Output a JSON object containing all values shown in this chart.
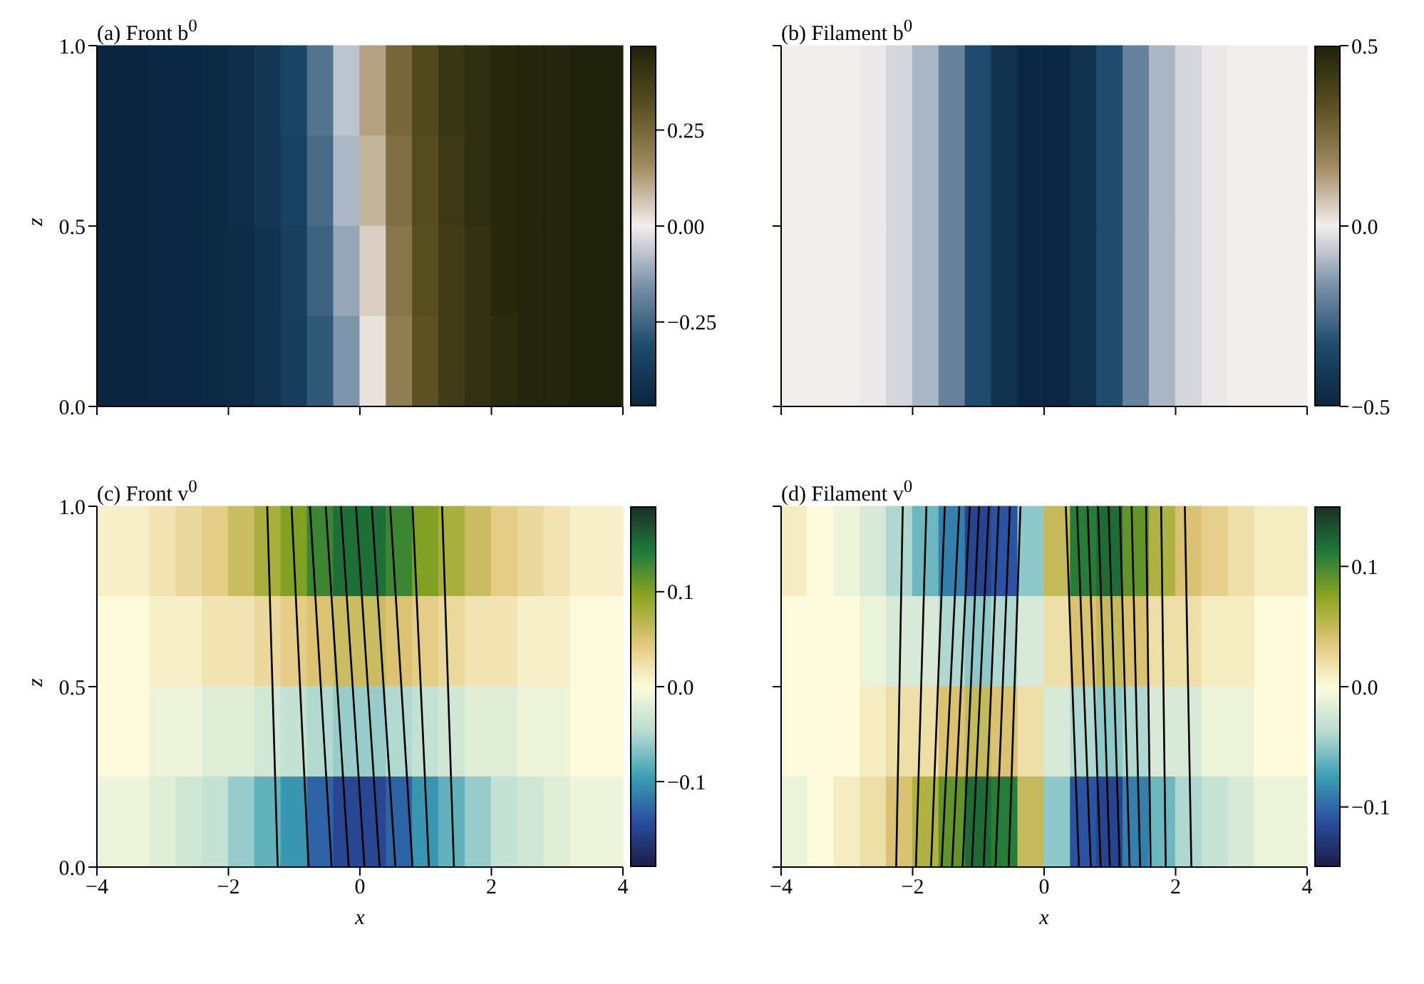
{
  "chart_data": [
    {
      "type": "heatmap",
      "title": "(a) Front b$^{0}$",
      "ylabel": "z",
      "tick_labels": "y",
      "x": [
        -3.8,
        -3.4,
        -3.0,
        -2.6,
        -2.2,
        -1.8,
        -1.4,
        -1.0,
        -0.6,
        -0.2,
        0.2,
        0.6,
        1.0,
        1.4,
        1.8,
        2.2,
        2.6,
        3.0,
        3.4,
        3.8
      ],
      "cells": [
        [
          -0.47,
          -0.47,
          -0.46,
          -0.46,
          -0.45,
          -0.43,
          -0.4,
          -0.34,
          -0.22,
          -0.07,
          0.12,
          0.25,
          0.34,
          0.4,
          0.43,
          0.45,
          0.46,
          0.46,
          0.47,
          0.47
        ],
        [
          -0.47,
          -0.47,
          -0.46,
          -0.46,
          -0.45,
          -0.43,
          -0.4,
          -0.35,
          -0.24,
          -0.09,
          0.09,
          0.23,
          0.33,
          0.39,
          0.43,
          0.45,
          0.46,
          0.46,
          0.47,
          0.47
        ],
        [
          -0.47,
          -0.47,
          -0.46,
          -0.46,
          -0.45,
          -0.44,
          -0.41,
          -0.36,
          -0.26,
          -0.12,
          0.05,
          0.21,
          0.32,
          0.38,
          0.42,
          0.45,
          0.46,
          0.46,
          0.47,
          0.47
        ],
        [
          -0.47,
          -0.47,
          -0.46,
          -0.46,
          -0.45,
          -0.44,
          -0.41,
          -0.37,
          -0.28,
          -0.15,
          0.02,
          0.19,
          0.31,
          0.38,
          0.42,
          0.44,
          0.46,
          0.46,
          0.47,
          0.47
        ]
      ],
      "colors": [
        "#0b2540",
        "#1d4a6b",
        "#7890a8",
        "#f3eeee",
        "#a08a60",
        "#5a5020",
        "#1f220b"
      ],
      "clim": [
        -0.47,
        0.47
      ],
      "cticks": [
        {
          "value": -0.25,
          "label": "−0.25"
        },
        {
          "value": 0,
          "label": "0.00"
        },
        {
          "value": 0.25,
          "label": "0.25"
        }
      ],
      "xlim": [
        -4,
        4
      ],
      "xticks": [
        {
          "value": -4,
          "label": null
        },
        {
          "value": -2,
          "label": null
        },
        {
          "value": 0,
          "label": null
        },
        {
          "value": 2,
          "label": null
        },
        {
          "value": 4,
          "label": null
        }
      ],
      "ylim": [
        0,
        1
      ],
      "yticks": [
        {
          "value": 0,
          "label": "0.0"
        },
        {
          "value": 0.5,
          "label": "0.5"
        },
        {
          "value": 1,
          "label": "1.0"
        }
      ]
    },
    {
      "type": "heatmap",
      "title": "(b) Filament b$^{0}$",
      "tick_labels": false,
      "x": [
        -3.8,
        -3.4,
        -3.0,
        -2.6,
        -2.2,
        -1.8,
        -1.4,
        -1.0,
        -0.6,
        -0.2,
        0.2,
        0.6,
        1.0,
        1.4,
        1.8,
        2.2,
        2.6,
        3.0,
        3.4,
        3.8
      ],
      "cells": [
        [
          0,
          0,
          0,
          -0.01,
          -0.04,
          -0.1,
          -0.2,
          -0.33,
          -0.44,
          -0.49,
          -0.49,
          -0.44,
          -0.33,
          -0.2,
          -0.1,
          -0.04,
          -0.01,
          0,
          0,
          0
        ],
        [
          0,
          0,
          0,
          -0.01,
          -0.04,
          -0.1,
          -0.2,
          -0.33,
          -0.44,
          -0.49,
          -0.49,
          -0.44,
          -0.33,
          -0.2,
          -0.1,
          -0.04,
          -0.01,
          0,
          0,
          0
        ],
        [
          0,
          0,
          0,
          -0.01,
          -0.04,
          -0.1,
          -0.2,
          -0.33,
          -0.44,
          -0.49,
          -0.49,
          -0.44,
          -0.33,
          -0.2,
          -0.1,
          -0.04,
          -0.01,
          0,
          0,
          0
        ],
        [
          0,
          0,
          0,
          -0.01,
          -0.04,
          -0.1,
          -0.2,
          -0.33,
          -0.44,
          -0.49,
          -0.49,
          -0.44,
          -0.33,
          -0.2,
          -0.1,
          -0.04,
          -0.01,
          0,
          0,
          0
        ]
      ],
      "colors": [
        "#0b2540",
        "#1d4a6b",
        "#7890a8",
        "#f3eeee",
        "#a08a60",
        "#5a5020",
        "#1f220b"
      ],
      "clim": [
        -0.5,
        0.5
      ],
      "cticks": [
        {
          "value": -0.5,
          "label": "−0.5"
        },
        {
          "value": 0,
          "label": "0.0"
        },
        {
          "value": 0.5,
          "label": "0.5"
        }
      ],
      "xlim": [
        -4,
        4
      ],
      "xticks": [
        {
          "value": -4,
          "label": null
        },
        {
          "value": -2,
          "label": null
        },
        {
          "value": 0,
          "label": null
        },
        {
          "value": 2,
          "label": null
        },
        {
          "value": 4,
          "label": null
        }
      ],
      "ylim": [
        0,
        1
      ],
      "yticks": [
        {
          "value": 0,
          "label": null
        },
        {
          "value": 0.5,
          "label": null
        },
        {
          "value": 1,
          "label": null
        }
      ]
    },
    {
      "type": "heatmap",
      "title": "(c) Front v$^{0}$",
      "xlabel": "x",
      "ylabel": "z",
      "x": [
        -3.8,
        -3.4,
        -3.0,
        -2.6,
        -2.2,
        -1.8,
        -1.4,
        -1.0,
        -0.6,
        -0.2,
        0.2,
        0.6,
        1.0,
        1.4,
        1.8,
        2.2,
        2.6,
        3.0,
        3.4,
        3.8
      ],
      "cells": [
        [
          0.01,
          0.01,
          0.02,
          0.03,
          0.04,
          0.06,
          0.08,
          0.1,
          0.13,
          0.15,
          0.15,
          0.13,
          0.1,
          0.08,
          0.06,
          0.04,
          0.03,
          0.02,
          0.01,
          0.01
        ],
        [
          0,
          0,
          0.01,
          0.01,
          0.02,
          0.02,
          0.03,
          0.04,
          0.05,
          0.06,
          0.06,
          0.05,
          0.04,
          0.03,
          0.02,
          0.02,
          0.01,
          0.01,
          0,
          0
        ],
        [
          0,
          0,
          -0.01,
          -0.01,
          -0.02,
          -0.02,
          -0.03,
          -0.04,
          -0.05,
          -0.06,
          -0.06,
          -0.05,
          -0.04,
          -0.03,
          -0.02,
          -0.02,
          -0.01,
          -0.01,
          0,
          0
        ],
        [
          -0.01,
          -0.01,
          -0.02,
          -0.03,
          -0.04,
          -0.06,
          -0.08,
          -0.1,
          -0.13,
          -0.15,
          -0.15,
          -0.13,
          -0.1,
          -0.08,
          -0.06,
          -0.04,
          -0.03,
          -0.02,
          -0.01,
          -0.01
        ]
      ],
      "colors": [
        "#1c1c45",
        "#2a4ea0",
        "#3b9fb3",
        "#b8dcd2",
        "#fdfbdc",
        "#e0c478",
        "#8ea520",
        "#1f7a3a",
        "#1a3028"
      ],
      "clim": [
        -0.19,
        0.19
      ],
      "cticks": [
        {
          "value": -0.1,
          "label": "−0.1"
        },
        {
          "value": 0,
          "label": "0.0"
        },
        0.1
      ],
      "xlim": [
        -4,
        4
      ],
      "xticks": [
        {
          "value": -4,
          "label": "−4"
        },
        {
          "value": -2,
          "label": "−2"
        },
        0,
        2,
        4
      ],
      "ylim": [
        0,
        1
      ],
      "yticks": [
        {
          "value": 0,
          "label": "0.0"
        },
        {
          "value": 0.5,
          "label": "0.5"
        },
        {
          "value": 1,
          "label": "1.0"
        }
      ],
      "series": [
        {
          "type": "line",
          "color": "#000000",
          "x": [
            -1.25,
            -1.41
          ],
          "values": [
            0,
            1
          ]
        },
        {
          "type": "line",
          "color": "#000000",
          "x": [
            -0.78,
            -1.04
          ],
          "values": [
            0,
            1
          ]
        },
        {
          "type": "line",
          "color": "#000000",
          "x": [
            -0.43,
            -0.76
          ],
          "values": [
            0,
            1
          ]
        },
        {
          "type": "line",
          "color": "#000000",
          "x": [
            -0.17,
            -0.52
          ],
          "values": [
            0,
            1
          ]
        },
        {
          "type": "line",
          "color": "#000000",
          "x": [
            0.07,
            -0.29
          ],
          "values": [
            0,
            1
          ]
        },
        {
          "type": "line",
          "color": "#000000",
          "x": [
            0.3,
            -0.06
          ],
          "values": [
            0,
            1
          ]
        },
        {
          "type": "line",
          "color": "#000000",
          "x": [
            0.54,
            0.18
          ],
          "values": [
            0,
            1
          ]
        },
        {
          "type": "line",
          "color": "#000000",
          "x": [
            0.8,
            0.46
          ],
          "values": [
            0,
            1
          ]
        },
        {
          "type": "line",
          "color": "#000000",
          "x": [
            1.05,
            0.8
          ],
          "values": [
            0,
            1
          ]
        },
        {
          "type": "line",
          "color": "#000000",
          "x": [
            1.43,
            1.25
          ],
          "values": [
            0,
            1
          ]
        }
      ]
    },
    {
      "type": "heatmap",
      "title": "(d) Filament v$^{0}$",
      "xlabel": "x",
      "tick_labels": "x",
      "x": [
        -3.8,
        -3.4,
        -3.0,
        -2.6,
        -2.2,
        -1.8,
        -1.4,
        -1.0,
        -0.6,
        -0.2,
        0.2,
        0.6,
        1.0,
        1.4,
        1.8,
        2.2,
        2.6,
        3.0,
        3.4,
        3.8
      ],
      "cells": [
        [
          0.01,
          0,
          -0.01,
          -0.02,
          -0.04,
          -0.06,
          -0.09,
          -0.12,
          -0.11,
          -0.05,
          0.05,
          0.11,
          0.12,
          0.09,
          0.06,
          0.04,
          0.03,
          0.02,
          0.01,
          0.01
        ],
        [
          0,
          0,
          0,
          -0.01,
          -0.02,
          -0.02,
          -0.04,
          -0.05,
          -0.04,
          -0.02,
          0.02,
          0.04,
          0.05,
          0.04,
          0.02,
          0.02,
          0.01,
          0.01,
          0,
          0
        ],
        [
          0,
          0,
          0,
          0.01,
          0.02,
          0.02,
          0.04,
          0.05,
          0.04,
          0.02,
          -0.02,
          -0.04,
          -0.05,
          -0.04,
          -0.02,
          -0.02,
          -0.01,
          -0.01,
          0,
          0
        ],
        [
          -0.01,
          0,
          0.01,
          0.02,
          0.04,
          0.06,
          0.09,
          0.12,
          0.11,
          0.05,
          -0.05,
          -0.11,
          -0.12,
          -0.09,
          -0.06,
          -0.04,
          -0.03,
          -0.02,
          -0.01,
          -0.01
        ]
      ],
      "colors": [
        "#1c1c45",
        "#2a4ea0",
        "#3b9fb3",
        "#b8dcd2",
        "#fdfbdc",
        "#e0c478",
        "#8ea520",
        "#1f7a3a",
        "#1a3028"
      ],
      "clim": [
        -0.15,
        0.15
      ],
      "cticks": [
        {
          "value": -0.1,
          "label": "−0.1"
        },
        {
          "value": 0,
          "label": "0.0"
        },
        0.1
      ],
      "xlim": [
        -4,
        4
      ],
      "xticks": [
        {
          "value": -4,
          "label": "−4"
        },
        {
          "value": -2,
          "label": "−2"
        },
        0,
        2,
        4
      ],
      "ylim": [
        0,
        1
      ],
      "yticks": [
        {
          "value": 0,
          "label": null
        },
        {
          "value": 0.5,
          "label": null
        },
        {
          "value": 1,
          "label": null
        }
      ],
      "series": [
        {
          "type": "line",
          "color": "#000000",
          "x": [
            -2.25,
            -2.15
          ],
          "values": [
            0,
            1
          ]
        },
        {
          "type": "line",
          "color": "#000000",
          "x": [
            -1.95,
            -1.79
          ],
          "values": [
            0,
            1
          ]
        },
        {
          "type": "line",
          "color": "#000000",
          "x": [
            -1.72,
            -1.51
          ],
          "values": [
            0,
            1
          ]
        },
        {
          "type": "line",
          "color": "#000000",
          "x": [
            -1.56,
            -1.29
          ],
          "values": [
            0,
            1
          ]
        },
        {
          "type": "line",
          "color": "#000000",
          "x": [
            -1.4,
            -1.13
          ],
          "values": [
            0,
            1
          ]
        },
        {
          "type": "line",
          "color": "#000000",
          "x": [
            -1.24,
            -0.99
          ],
          "values": [
            0,
            1
          ]
        },
        {
          "type": "line",
          "color": "#000000",
          "x": [
            -1.1,
            -0.84
          ],
          "values": [
            0,
            1
          ]
        },
        {
          "type": "line",
          "color": "#000000",
          "x": [
            -0.92,
            -0.69
          ],
          "values": [
            0,
            1
          ]
        },
        {
          "type": "line",
          "color": "#000000",
          "x": [
            -0.74,
            -0.52
          ],
          "values": [
            0,
            1
          ]
        },
        {
          "type": "line",
          "color": "#000000",
          "x": [
            -0.54,
            -0.36
          ],
          "values": [
            0,
            1
          ]
        },
        {
          "type": "line",
          "color": "#000000",
          "x": [
            0.53,
            0.33
          ],
          "values": [
            0,
            1
          ]
        },
        {
          "type": "line",
          "color": "#000000",
          "x": [
            0.71,
            0.5
          ],
          "values": [
            0,
            1
          ]
        },
        {
          "type": "line",
          "color": "#000000",
          "x": [
            0.86,
            0.66
          ],
          "values": [
            0,
            1
          ]
        },
        {
          "type": "line",
          "color": "#000000",
          "x": [
            1.0,
            0.82
          ],
          "values": [
            0,
            1
          ]
        },
        {
          "type": "line",
          "color": "#000000",
          "x": [
            1.15,
            0.98
          ],
          "values": [
            0,
            1
          ]
        },
        {
          "type": "line",
          "color": "#000000",
          "x": [
            1.3,
            1.15
          ],
          "values": [
            0,
            1
          ]
        },
        {
          "type": "line",
          "color": "#000000",
          "x": [
            1.46,
            1.33
          ],
          "values": [
            0,
            1
          ]
        },
        {
          "type": "line",
          "color": "#000000",
          "x": [
            1.62,
            1.55
          ],
          "values": [
            0,
            1
          ]
        },
        {
          "type": "line",
          "color": "#000000",
          "x": [
            1.85,
            1.78
          ],
          "values": [
            0,
            1
          ]
        },
        {
          "type": "line",
          "color": "#000000",
          "x": [
            2.24,
            2.14
          ],
          "values": [
            0,
            1
          ]
        }
      ]
    }
  ]
}
